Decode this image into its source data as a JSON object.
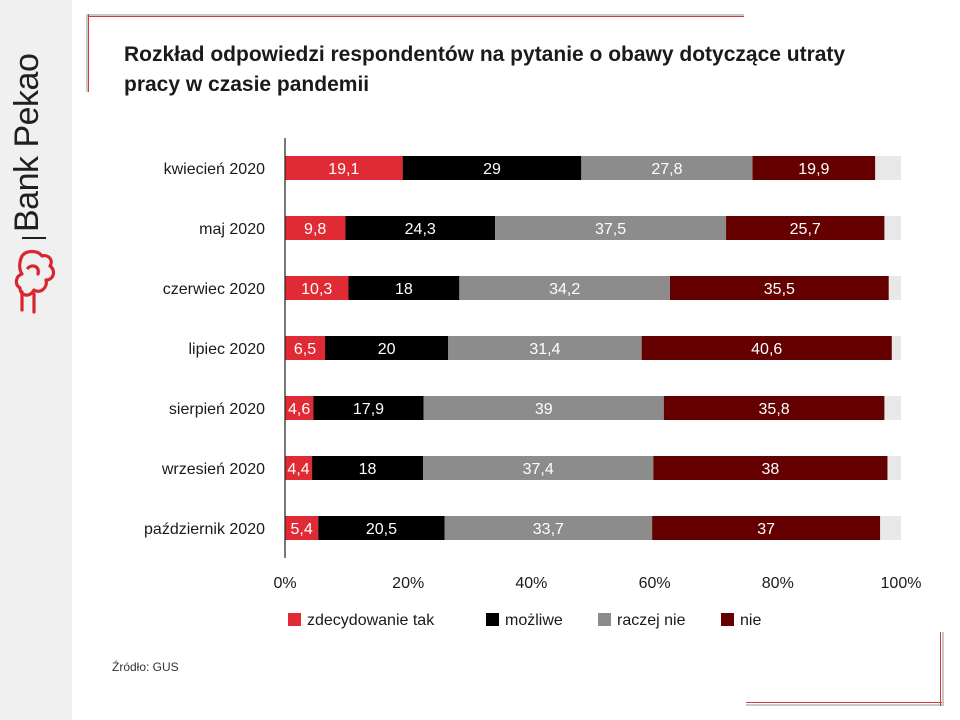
{
  "brand": {
    "name": "Bank Pekao",
    "logo_color": "#d9262e"
  },
  "source_note": "Źródło: GUS",
  "colors": {
    "zdecydowanie_tak": "#e02b35",
    "mozliwe": "#000000",
    "raczej_nie": "#8c8c8c",
    "nie": "#650000",
    "remainder": "#e8e8e8"
  },
  "chart_data": {
    "type": "bar",
    "orientation": "horizontal",
    "stacked": true,
    "title": "Rozkład odpowiedzi respondentów na pytanie o obawy dotyczące utraty pracy w czasie pandemii",
    "categories": [
      "kwiecień 2020",
      "maj 2020",
      "czerwiec 2020",
      "lipiec 2020",
      "sierpień 2020",
      "wrzesień 2020",
      "październik 2020"
    ],
    "series": [
      {
        "name": "zdecydowanie tak",
        "values": [
          19.1,
          9.8,
          10.3,
          6.5,
          4.6,
          4.4,
          5.4
        ]
      },
      {
        "name": "możliwe",
        "values": [
          29,
          24.3,
          18,
          20,
          17.9,
          18,
          20.5
        ]
      },
      {
        "name": "raczej nie",
        "values": [
          27.8,
          37.5,
          34.2,
          31.4,
          39,
          37.4,
          33.7
        ]
      },
      {
        "name": "nie",
        "values": [
          19.9,
          25.7,
          35.5,
          40.6,
          35.8,
          38,
          37
        ]
      }
    ],
    "data_labels": [
      [
        "19,1",
        "9,8",
        "10,3",
        "6,5",
        "4,6",
        "4,4",
        "5,4"
      ],
      [
        "29",
        "24,3",
        "18",
        "20",
        "17,9",
        "18",
        "20,5"
      ],
      [
        "27,8",
        "37,5",
        "34,2",
        "31,4",
        "39",
        "37,4",
        "33,7"
      ],
      [
        "19,9",
        "25,7",
        "35,5",
        "40,6",
        "35,8",
        "38",
        "37"
      ]
    ],
    "xlim": [
      0,
      100
    ],
    "x_ticks": [
      0,
      20,
      40,
      60,
      80,
      100
    ],
    "x_tick_labels": [
      "0%",
      "20%",
      "40%",
      "60%",
      "80%",
      "100%"
    ],
    "xlabel": "",
    "ylabel": "",
    "legend": [
      "zdecydowanie tak",
      "możliwe",
      "raczej nie",
      "nie"
    ],
    "legend_position": "bottom",
    "grid": false
  }
}
